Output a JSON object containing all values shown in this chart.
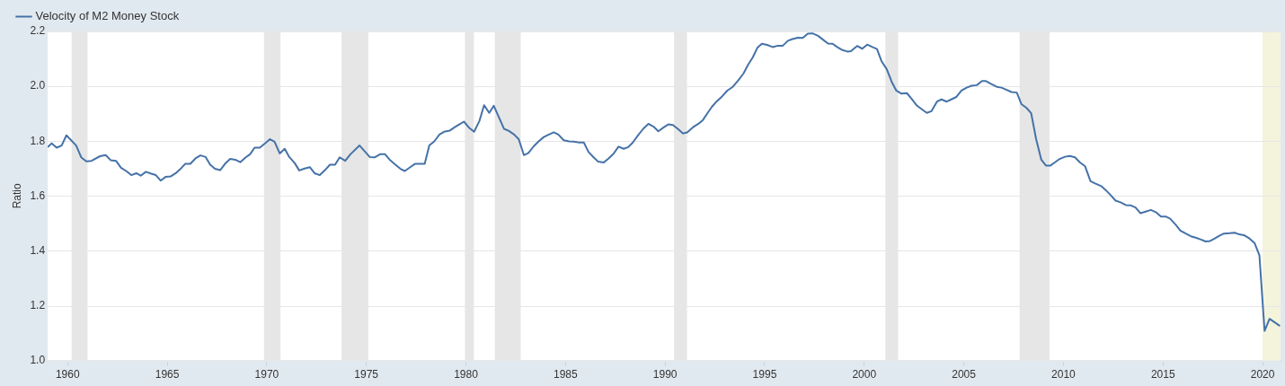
{
  "chart_data": {
    "type": "line",
    "ylabel": "Ratio",
    "xlim": [
      1959,
      2020.9
    ],
    "xticks": [
      1960,
      1965,
      1970,
      1975,
      1980,
      1985,
      1990,
      1995,
      2000,
      2005,
      2010,
      2015,
      2020
    ],
    "ylim": [
      1.0,
      2.2
    ],
    "yticks": [
      {
        "value": 1.0,
        "label": "1.0"
      },
      1.2,
      1.4,
      1.6,
      1.8,
      {
        "value": 2.0,
        "label": "2.0"
      },
      2.2
    ],
    "grid": "y",
    "legend": "top left",
    "marker": "none",
    "line_style": "solid",
    "bands": [
      {
        "axis": "x",
        "from": 1960.2,
        "to": 1961.0,
        "color": "#e6e6e6"
      },
      {
        "axis": "x",
        "from": 1969.86,
        "to": 1970.69,
        "color": "#e6e6e6"
      },
      {
        "axis": "x",
        "from": 1973.75,
        "to": 1975.1,
        "color": "#e6e6e6"
      },
      {
        "axis": "x",
        "from": 1979.95,
        "to": 1980.4,
        "color": "#e6e6e6"
      },
      {
        "axis": "x",
        "from": 1981.45,
        "to": 1982.75,
        "color": "#e6e6e6"
      },
      {
        "axis": "x",
        "from": 1990.45,
        "to": 1991.1,
        "color": "#e6e6e6"
      },
      {
        "axis": "x",
        "from": 2001.06,
        "to": 2001.7,
        "color": "#e6e6e6"
      },
      {
        "axis": "x",
        "from": 2007.8,
        "to": 2009.3,
        "color": "#e6e6e6"
      },
      {
        "axis": "x",
        "from": 2020.0,
        "to": 2020.9,
        "color": "#f4f4dc"
      }
    ],
    "series": [
      {
        "name": "Velocity of M2 Money Stock",
        "color": "#4572a7",
        "x": [
          1959.0,
          1959.2,
          1959.45,
          1959.7,
          1959.94,
          1960.43,
          1960.68,
          1960.94,
          1961.2,
          1961.63,
          1961.91,
          1962.17,
          1962.43,
          1962.68,
          1962.94,
          1963.2,
          1963.45,
          1963.67,
          1963.93,
          1964.2,
          1964.43,
          1964.67,
          1964.93,
          1965.17,
          1965.43,
          1965.66,
          1965.9,
          1966.16,
          1966.42,
          1966.67,
          1966.93,
          1967.16,
          1967.4,
          1967.66,
          1967.9,
          1968.16,
          1968.42,
          1968.67,
          1968.93,
          1969.16,
          1969.39,
          1969.65,
          1969.9,
          1970.16,
          1970.39,
          1970.65,
          1970.9,
          1971.13,
          1971.4,
          1971.63,
          1971.9,
          1972.16,
          1972.4,
          1972.66,
          1972.92,
          1973.17,
          1973.43,
          1973.66,
          1973.94,
          1974.2,
          1974.66,
          1975.17,
          1975.43,
          1975.69,
          1975.94,
          1976.2,
          1976.46,
          1976.71,
          1976.93,
          1977.2,
          1977.44,
          1977.7,
          1977.93,
          1978.16,
          1978.41,
          1978.67,
          1978.9,
          1979.18,
          1979.44,
          1979.9,
          1980.17,
          1980.41,
          1980.68,
          1980.91,
          1981.17,
          1981.4,
          1981.65,
          1981.91,
          1982.14,
          1982.42,
          1982.65,
          1982.91,
          1983.14,
          1983.4,
          1983.65,
          1983.91,
          1984.14,
          1984.41,
          1984.64,
          1984.91,
          1985.18,
          1985.41,
          1985.69,
          1985.92,
          1986.15,
          1986.41,
          1986.64,
          1986.92,
          1987.15,
          1987.41,
          1987.66,
          1987.92,
          1988.15,
          1988.38,
          1988.62,
          1988.89,
          1989.16,
          1989.42,
          1989.66,
          1989.93,
          1990.16,
          1990.39,
          1990.65,
          1990.9,
          1991.11,
          1991.39,
          1991.67,
          1991.9,
          1992.13,
          1992.35,
          1992.59,
          1992.86,
          1993.12,
          1993.4,
          1993.67,
          1993.94,
          1994.17,
          1994.4,
          1994.63,
          1994.86,
          1995.12,
          1995.4,
          1995.66,
          1995.91,
          1996.17,
          1996.4,
          1996.66,
          1996.91,
          1997.17,
          1997.4,
          1997.68,
          1997.91,
          1998.18,
          1998.41,
          1998.64,
          1998.91,
          1999.18,
          1999.33,
          1999.64,
          1999.9,
          2000.15,
          2000.41,
          2000.64,
          2000.87,
          2001.13,
          2001.38,
          2001.61,
          2001.87,
          2002.14,
          2002.37,
          2002.65,
          2002.91,
          2003.14,
          2003.37,
          2003.65,
          2003.88,
          2004.14,
          2004.37,
          2004.62,
          2004.88,
          2005.14,
          2005.39,
          2005.65,
          2005.91,
          2006.11,
          2006.38,
          2006.65,
          2006.89,
          2007.15,
          2007.39,
          2007.66,
          2007.89,
          2008.15,
          2008.38,
          2008.63,
          2008.89,
          2009.12,
          2009.35,
          2009.58,
          2009.81,
          2010.08,
          2010.32,
          2010.58,
          2010.82,
          2011.09,
          2011.36,
          2011.62,
          2011.9,
          2012.13,
          2012.36,
          2012.62,
          2012.87,
          2013.13,
          2013.36,
          2013.62,
          2013.87,
          2014.13,
          2014.39,
          2014.64,
          2014.9,
          2015.13,
          2015.36,
          2015.63,
          2015.87,
          2016.14,
          2016.4,
          2016.64,
          2016.91,
          2017.14,
          2017.37,
          2017.6,
          2017.83,
          2018.06,
          2018.34,
          2018.6,
          2018.83,
          2019.1,
          2019.34,
          2019.6,
          2019.84,
          2020.1,
          2020.35,
          2020.61,
          2020.87
        ],
        "values": [
          1.778,
          1.792,
          1.776,
          1.784,
          1.821,
          1.784,
          1.741,
          1.726,
          1.728,
          1.745,
          1.749,
          1.73,
          1.728,
          1.703,
          1.691,
          1.676,
          1.683,
          1.674,
          1.688,
          1.681,
          1.676,
          1.656,
          1.67,
          1.671,
          1.683,
          1.698,
          1.717,
          1.717,
          1.737,
          1.748,
          1.742,
          1.714,
          1.699,
          1.694,
          1.717,
          1.735,
          1.732,
          1.723,
          1.74,
          1.752,
          1.776,
          1.776,
          1.791,
          1.807,
          1.798,
          1.755,
          1.772,
          1.742,
          1.72,
          1.693,
          1.7,
          1.705,
          1.683,
          1.676,
          1.694,
          1.714,
          1.714,
          1.741,
          1.728,
          1.752,
          1.784,
          1.742,
          1.741,
          1.752,
          1.752,
          1.73,
          1.714,
          1.699,
          1.691,
          1.705,
          1.717,
          1.717,
          1.717,
          1.784,
          1.799,
          1.824,
          1.834,
          1.838,
          1.851,
          1.871,
          1.848,
          1.834,
          1.874,
          1.931,
          1.903,
          1.929,
          1.888,
          1.845,
          1.838,
          1.824,
          1.807,
          1.749,
          1.757,
          1.781,
          1.799,
          1.815,
          1.823,
          1.832,
          1.824,
          1.803,
          1.799,
          1.798,
          1.795,
          1.795,
          1.761,
          1.741,
          1.725,
          1.722,
          1.736,
          1.754,
          1.78,
          1.772,
          1.778,
          1.795,
          1.819,
          1.844,
          1.863,
          1.853,
          1.836,
          1.85,
          1.861,
          1.859,
          1.844,
          1.828,
          1.832,
          1.85,
          1.863,
          1.877,
          1.902,
          1.925,
          1.945,
          1.963,
          1.984,
          1.998,
          2.021,
          2.047,
          2.079,
          2.105,
          2.14,
          2.155,
          2.151,
          2.143,
          2.148,
          2.148,
          2.166,
          2.172,
          2.177,
          2.176,
          2.192,
          2.193,
          2.184,
          2.171,
          2.156,
          2.155,
          2.143,
          2.132,
          2.126,
          2.128,
          2.147,
          2.137,
          2.152,
          2.143,
          2.136,
          2.091,
          2.062,
          2.016,
          1.984,
          1.973,
          1.975,
          1.955,
          1.929,
          1.915,
          1.903,
          1.909,
          1.944,
          1.952,
          1.944,
          1.952,
          1.961,
          1.984,
          1.995,
          2.002,
          2.004,
          2.019,
          2.019,
          2.008,
          1.998,
          1.995,
          1.987,
          1.979,
          1.977,
          1.935,
          1.921,
          1.902,
          1.807,
          1.732,
          1.711,
          1.711,
          1.723,
          1.735,
          1.743,
          1.746,
          1.741,
          1.723,
          1.708,
          1.654,
          1.645,
          1.636,
          1.621,
          1.604,
          1.583,
          1.577,
          1.567,
          1.566,
          1.558,
          1.537,
          1.543,
          1.549,
          1.541,
          1.525,
          1.525,
          1.517,
          1.496,
          1.474,
          1.463,
          1.453,
          1.448,
          1.441,
          1.434,
          1.436,
          1.445,
          1.455,
          1.463,
          1.464,
          1.466,
          1.46,
          1.456,
          1.445,
          1.428,
          1.384,
          1.108,
          1.152,
          1.139,
          1.126
        ]
      }
    ]
  }
}
